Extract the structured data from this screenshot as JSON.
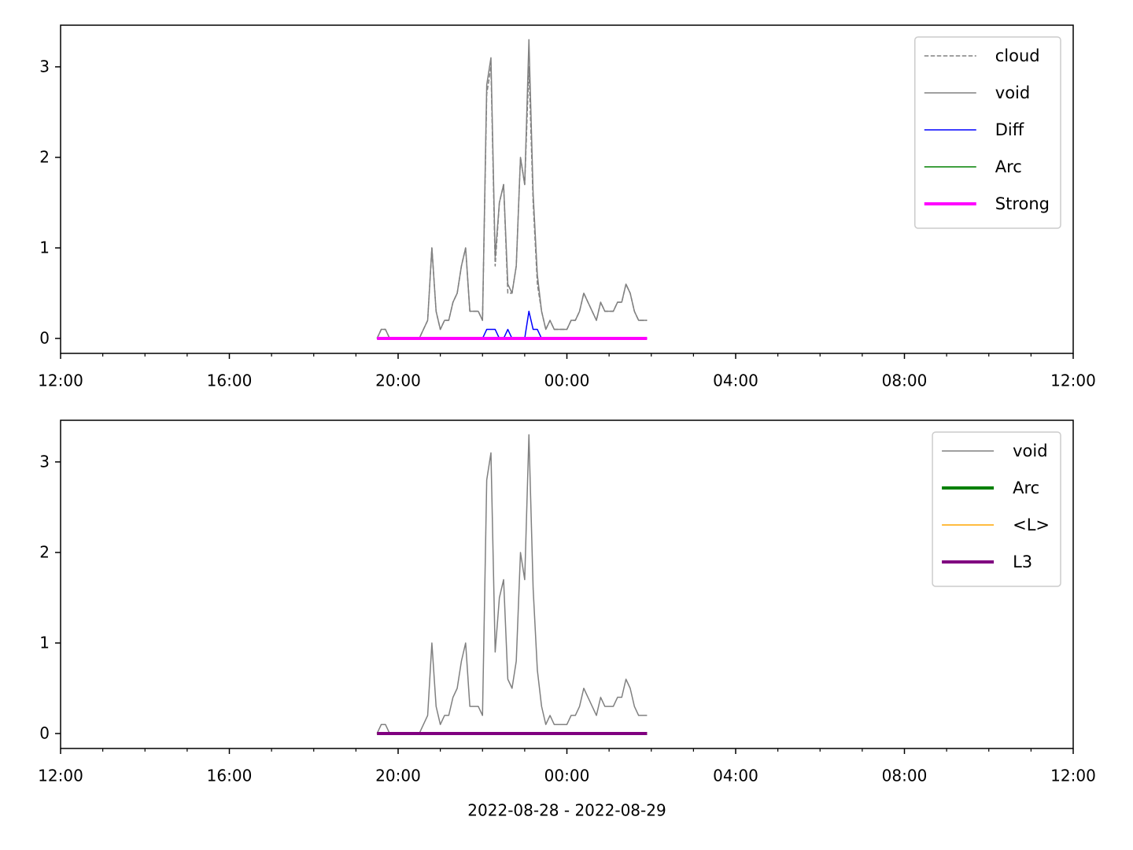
{
  "chart_data": [
    {
      "type": "line",
      "x": [
        7.5,
        7.6,
        7.7,
        7.8,
        7.9,
        8.0,
        8.1,
        8.2,
        8.3,
        8.4,
        8.5,
        8.6,
        8.7,
        8.8,
        8.9,
        9.0,
        9.1,
        9.2,
        9.3,
        9.4,
        9.5,
        9.6,
        9.7,
        9.8,
        9.9,
        10.0,
        10.1,
        10.2,
        10.3,
        10.4,
        10.5,
        10.6,
        10.7,
        10.8,
        10.9,
        11.0,
        11.1,
        11.2,
        11.3,
        11.4,
        11.5,
        11.6,
        11.7,
        11.8,
        11.9,
        12.0,
        12.1,
        12.2,
        12.3,
        12.4,
        12.5,
        12.6,
        12.7,
        12.8,
        12.9,
        13.0,
        13.1,
        13.2,
        13.3,
        13.4,
        13.5,
        13.6,
        13.7,
        13.8,
        13.9
      ],
      "series": [
        {
          "name": "cloud",
          "color": "#808080",
          "dashed": true,
          "linewidth": 1.5,
          "values": [
            0,
            0.1,
            0.1,
            0,
            0,
            0,
            0,
            0,
            0,
            0,
            0,
            0.1,
            0.2,
            1.0,
            0.3,
            0.1,
            0.2,
            0.2,
            0.4,
            0.5,
            0.8,
            1.0,
            0.3,
            0.3,
            0.3,
            0.2,
            2.7,
            3.0,
            0.8,
            1.5,
            1.7,
            0.5,
            0.5,
            0.8,
            2.0,
            1.7,
            3.0,
            1.5,
            0.6,
            0.3,
            0.1,
            0.2,
            0.1,
            0.1,
            0.1,
            0.1,
            0.2,
            0.2,
            0.3,
            0.5,
            0.4,
            0.3,
            0.2,
            0.4,
            0.3,
            0.3,
            0.3,
            0.4,
            0.4,
            0.6,
            0.5,
            0.3,
            0.2,
            0.2,
            0.2
          ]
        },
        {
          "name": "void",
          "color": "#808080",
          "dashed": false,
          "linewidth": 1.5,
          "values": [
            0,
            0.1,
            0.1,
            0,
            0,
            0,
            0,
            0,
            0,
            0,
            0,
            0.1,
            0.2,
            1.0,
            0.3,
            0.1,
            0.2,
            0.2,
            0.4,
            0.5,
            0.8,
            1.0,
            0.3,
            0.3,
            0.3,
            0.2,
            2.8,
            3.1,
            0.9,
            1.5,
            1.7,
            0.6,
            0.5,
            0.8,
            2.0,
            1.7,
            3.3,
            1.6,
            0.7,
            0.3,
            0.1,
            0.2,
            0.1,
            0.1,
            0.1,
            0.1,
            0.2,
            0.2,
            0.3,
            0.5,
            0.4,
            0.3,
            0.2,
            0.4,
            0.3,
            0.3,
            0.3,
            0.4,
            0.4,
            0.6,
            0.5,
            0.3,
            0.2,
            0.2,
            0.2
          ]
        },
        {
          "name": "Diff",
          "color": "#0000ff",
          "dashed": false,
          "linewidth": 1.5,
          "values": [
            0,
            0,
            0,
            0,
            0,
            0,
            0,
            0,
            0,
            0,
            0,
            0,
            0,
            0,
            0,
            0,
            0,
            0,
            0,
            0,
            0,
            0,
            0,
            0,
            0,
            0,
            0.1,
            0.1,
            0.1,
            0,
            0,
            0.1,
            0,
            0,
            0,
            0,
            0.3,
            0.1,
            0.1,
            0,
            0,
            0,
            0,
            0,
            0,
            0,
            0,
            0,
            0,
            0,
            0,
            0,
            0,
            0,
            0,
            0,
            0,
            0,
            0,
            0,
            0,
            0,
            0,
            0,
            0
          ]
        },
        {
          "name": "Arc",
          "color": "#008000",
          "dashed": false,
          "linewidth": 1.5,
          "values": [
            0,
            0,
            0,
            0,
            0,
            0,
            0,
            0,
            0,
            0,
            0,
            0,
            0,
            0,
            0,
            0,
            0,
            0,
            0,
            0,
            0,
            0,
            0,
            0,
            0,
            0,
            0,
            0,
            0,
            0,
            0,
            0,
            0,
            0,
            0,
            0,
            0,
            0,
            0,
            0,
            0,
            0,
            0,
            0,
            0,
            0,
            0,
            0,
            0,
            0,
            0,
            0,
            0,
            0,
            0,
            0,
            0,
            0,
            0,
            0,
            0,
            0,
            0,
            0,
            0
          ]
        },
        {
          "name": "Strong",
          "color": "#ff00ff",
          "dashed": false,
          "linewidth": 4,
          "values": [
            0,
            0,
            0,
            0,
            0,
            0,
            0,
            0,
            0,
            0,
            0,
            0,
            0,
            0,
            0,
            0,
            0,
            0,
            0,
            0,
            0,
            0,
            0,
            0,
            0,
            0,
            0,
            0,
            0,
            0,
            0,
            0,
            0,
            0,
            0,
            0,
            0,
            0,
            0,
            0,
            0,
            0,
            0,
            0,
            0,
            0,
            0,
            0,
            0,
            0,
            0,
            0,
            0,
            0,
            0,
            0,
            0,
            0,
            0,
            0,
            0,
            0,
            0,
            0,
            0
          ]
        }
      ],
      "xlim": [
        0,
        24
      ],
      "xticks": [
        {
          "value": 0,
          "label": "12:00"
        },
        {
          "value": 4,
          "label": "16:00"
        },
        {
          "value": 8,
          "label": "20:00"
        },
        {
          "value": 12,
          "label": "00:00"
        },
        {
          "value": 16,
          "label": "04:00"
        },
        {
          "value": 20,
          "label": "08:00"
        },
        {
          "value": 24,
          "label": "12:00"
        }
      ],
      "xminorticks": [
        1,
        2,
        3,
        5,
        6,
        7,
        9,
        10,
        11,
        13,
        14,
        15,
        17,
        18,
        19,
        21,
        22,
        23
      ],
      "ylim": [
        -0.165,
        3.46
      ],
      "yticks": [
        0,
        1,
        2,
        3
      ],
      "legend": "upper right"
    },
    {
      "type": "line",
      "x": [
        7.5,
        7.6,
        7.7,
        7.8,
        7.9,
        8.0,
        8.1,
        8.2,
        8.3,
        8.4,
        8.5,
        8.6,
        8.7,
        8.8,
        8.9,
        9.0,
        9.1,
        9.2,
        9.3,
        9.4,
        9.5,
        9.6,
        9.7,
        9.8,
        9.9,
        10.0,
        10.1,
        10.2,
        10.3,
        10.4,
        10.5,
        10.6,
        10.7,
        10.8,
        10.9,
        11.0,
        11.1,
        11.2,
        11.3,
        11.4,
        11.5,
        11.6,
        11.7,
        11.8,
        11.9,
        12.0,
        12.1,
        12.2,
        12.3,
        12.4,
        12.5,
        12.6,
        12.7,
        12.8,
        12.9,
        13.0,
        13.1,
        13.2,
        13.3,
        13.4,
        13.5,
        13.6,
        13.7,
        13.8,
        13.9
      ],
      "series": [
        {
          "name": "void",
          "color": "#808080",
          "dashed": false,
          "linewidth": 1.5,
          "values": [
            0,
            0.1,
            0.1,
            0,
            0,
            0,
            0,
            0,
            0,
            0,
            0,
            0.1,
            0.2,
            1.0,
            0.3,
            0.1,
            0.2,
            0.2,
            0.4,
            0.5,
            0.8,
            1.0,
            0.3,
            0.3,
            0.3,
            0.2,
            2.8,
            3.1,
            0.9,
            1.5,
            1.7,
            0.6,
            0.5,
            0.8,
            2.0,
            1.7,
            3.3,
            1.6,
            0.7,
            0.3,
            0.1,
            0.2,
            0.1,
            0.1,
            0.1,
            0.1,
            0.2,
            0.2,
            0.3,
            0.5,
            0.4,
            0.3,
            0.2,
            0.4,
            0.3,
            0.3,
            0.3,
            0.4,
            0.4,
            0.6,
            0.5,
            0.3,
            0.2,
            0.2,
            0.2
          ]
        },
        {
          "name": "Arc",
          "color": "#008000",
          "dashed": false,
          "linewidth": 4,
          "values": [
            0,
            0,
            0,
            0,
            0,
            0,
            0,
            0,
            0,
            0,
            0,
            0,
            0,
            0,
            0,
            0,
            0,
            0,
            0,
            0,
            0,
            0,
            0,
            0,
            0,
            0,
            0,
            0,
            0,
            0,
            0,
            0,
            0,
            0,
            0,
            0,
            0,
            0,
            0,
            0,
            0,
            0,
            0,
            0,
            0,
            0,
            0,
            0,
            0,
            0,
            0,
            0,
            0,
            0,
            0,
            0,
            0,
            0,
            0,
            0,
            0,
            0,
            0,
            0,
            0
          ]
        },
        {
          "name": "<L>",
          "color": "#ffa500",
          "dashed": false,
          "linewidth": 1.5,
          "values": [
            0,
            0,
            0,
            0,
            0,
            0,
            0,
            0,
            0,
            0,
            0,
            0,
            0,
            0,
            0,
            0,
            0,
            0,
            0,
            0,
            0,
            0,
            0,
            0,
            0,
            0,
            0,
            0,
            0,
            0,
            0,
            0,
            0,
            0,
            0,
            0,
            0,
            0,
            0,
            0,
            0,
            0,
            0,
            0,
            0,
            0,
            0,
            0,
            0,
            0,
            0,
            0,
            0,
            0,
            0,
            0,
            0,
            0,
            0,
            0,
            0,
            0,
            0,
            0,
            0
          ]
        },
        {
          "name": "L3",
          "color": "#800080",
          "dashed": false,
          "linewidth": 4,
          "values": [
            0,
            0,
            0,
            0,
            0,
            0,
            0,
            0,
            0,
            0,
            0,
            0,
            0,
            0,
            0,
            0,
            0,
            0,
            0,
            0,
            0,
            0,
            0,
            0,
            0,
            0,
            0,
            0,
            0,
            0,
            0,
            0,
            0,
            0,
            0,
            0,
            0,
            0,
            0,
            0,
            0,
            0,
            0,
            0,
            0,
            0,
            0,
            0,
            0,
            0,
            0,
            0,
            0,
            0,
            0,
            0,
            0,
            0,
            0,
            0,
            0,
            0,
            0,
            0,
            0
          ]
        }
      ],
      "xlabel": "2022-08-28 - 2022-08-29",
      "xlim": [
        0,
        24
      ],
      "xticks": [
        {
          "value": 0,
          "label": "12:00"
        },
        {
          "value": 4,
          "label": "16:00"
        },
        {
          "value": 8,
          "label": "20:00"
        },
        {
          "value": 12,
          "label": "00:00"
        },
        {
          "value": 16,
          "label": "04:00"
        },
        {
          "value": 20,
          "label": "08:00"
        },
        {
          "value": 24,
          "label": "12:00"
        }
      ],
      "xminorticks": [
        1,
        2,
        3,
        5,
        6,
        7,
        9,
        10,
        11,
        13,
        14,
        15,
        17,
        18,
        19,
        21,
        22,
        23
      ],
      "ylim": [
        -0.165,
        3.46
      ],
      "yticks": [
        0,
        1,
        2,
        3
      ],
      "legend": "upper right"
    }
  ]
}
